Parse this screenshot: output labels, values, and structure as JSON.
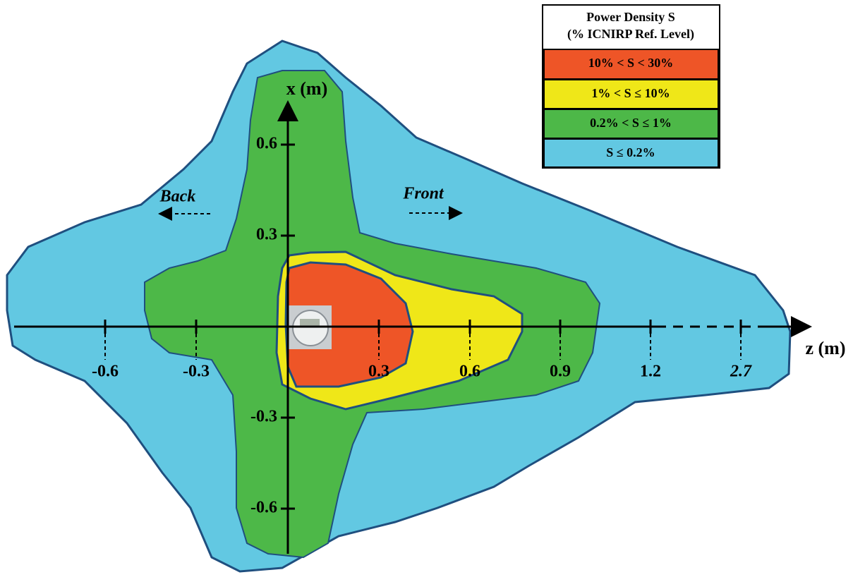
{
  "legend": {
    "title": [
      "Power Density S",
      "(% ICNIRP Ref. Level)"
    ],
    "entries": [
      "10% < S < 30%",
      "1% < S ≤ 10%",
      "0.2% < S ≤ 1%",
      "S ≤ 0.2%"
    ]
  },
  "axes": {
    "z": {
      "label": "z (m)",
      "ticks": [
        "-0.6",
        "-0.3",
        "0.3",
        "0.6",
        "0.9",
        "1.2",
        "2.7"
      ]
    },
    "x": {
      "label": "x (m)",
      "ticks": [
        "0.6",
        "0.3",
        "-0.3",
        "-0.6"
      ]
    }
  },
  "directions": {
    "back": "Back",
    "front": "Front"
  }
}
